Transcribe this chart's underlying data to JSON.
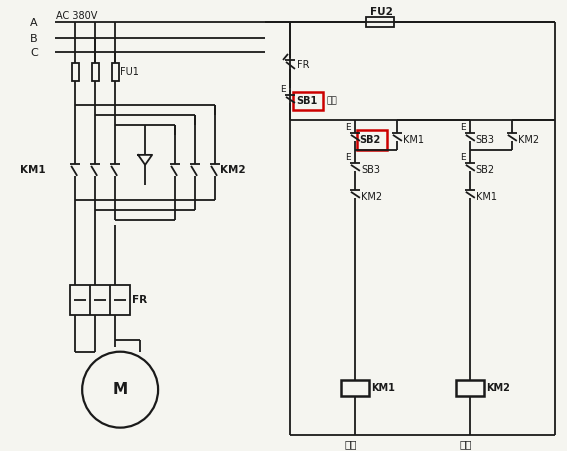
{
  "bg_color": "#f5f5f0",
  "line_color": "#1a1a1a",
  "red_color": "#cc0000",
  "figsize": [
    5.67,
    4.51
  ],
  "dpi": 100,
  "ac_label": "AC 380V",
  "fu2_label": "FU2",
  "fu1_label": "FU1",
  "fr_label": "FR",
  "km1_label": "KM1",
  "km2_label": "KM2",
  "sb1_label": "SB1",
  "sb2_label": "SB2",
  "sb3_label": "SB3",
  "m_label": "M",
  "stop_label": "停车",
  "fwd_label": "正转",
  "rev_label": "反转",
  "a_label": "A",
  "b_label": "B",
  "c_label": "C"
}
